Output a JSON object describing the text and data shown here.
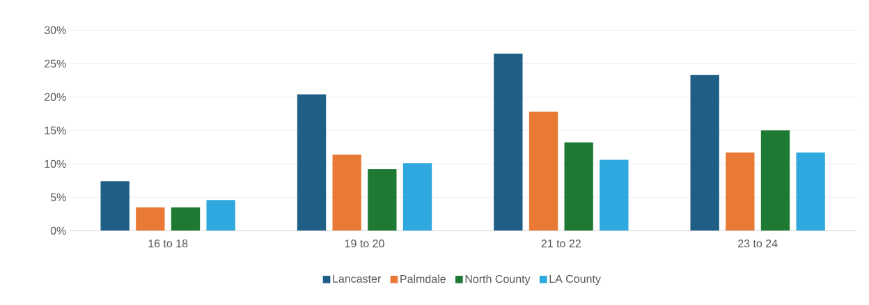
{
  "chart_data": {
    "type": "bar",
    "categories": [
      "16 to 18",
      "19 to 20",
      "21 to 22",
      "23 to 24"
    ],
    "series": [
      {
        "name": "Lancaster",
        "color": "#1f5f86",
        "values": [
          7.4,
          20.4,
          26.5,
          23.3
        ]
      },
      {
        "name": "Palmdale",
        "color": "#e97a35",
        "values": [
          3.5,
          11.4,
          17.8,
          11.7
        ]
      },
      {
        "name": "North County",
        "color": "#1e7a32",
        "values": [
          3.5,
          9.2,
          13.2,
          15.0
        ]
      },
      {
        "name": "LA County",
        "color": "#2ea8de",
        "values": [
          4.6,
          10.1,
          10.6,
          11.7
        ]
      }
    ],
    "ylim": [
      0,
      30
    ],
    "yticks": [
      {
        "value": 0,
        "label": "0%"
      },
      {
        "value": 5,
        "label": "5%"
      },
      {
        "value": 10,
        "label": "10%"
      },
      {
        "value": 15,
        "label": "15%"
      },
      {
        "value": 20,
        "label": "20%"
      },
      {
        "value": 25,
        "label": "25%"
      },
      {
        "value": 30,
        "label": "30%"
      }
    ],
    "grid": "y",
    "legend": "bottom"
  }
}
